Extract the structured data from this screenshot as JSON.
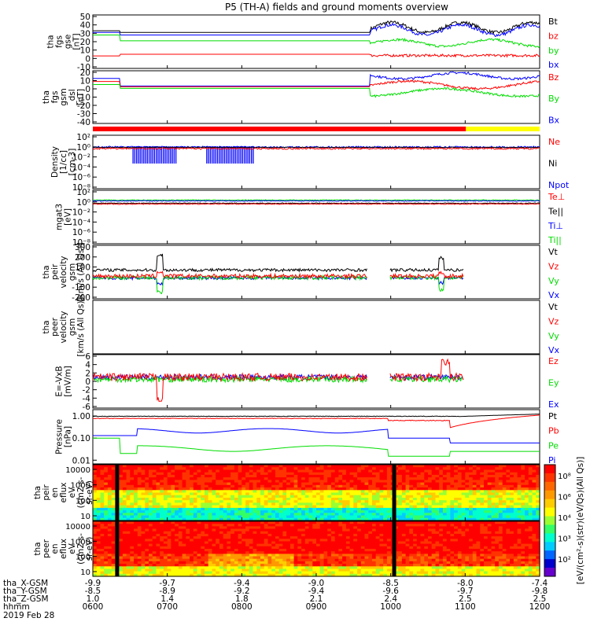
{
  "title": "P5 (TH-A) fields and ground moments overview",
  "colors": {
    "black": "#000000",
    "red": "#ff0000",
    "green": "#00dd00",
    "blue": "#0000ff",
    "mode_red": "#ff0000",
    "mode_yellow": "#ffff00"
  },
  "chart_data": [
    {
      "type": "line",
      "id": "fgs_gse",
      "ylabel": [
        "tha",
        "fgs",
        "gse",
        "[nT]"
      ],
      "ylim": [
        -10,
        50
      ],
      "yticks": [
        "50",
        "40",
        "30",
        "20",
        "10",
        "0",
        "-10"
      ],
      "legend": [
        "Bt",
        "bz",
        "by",
        "bx"
      ],
      "legend_colors": [
        "#000000",
        "#ff0000",
        "#00dd00",
        "#0000ff"
      ]
    },
    {
      "type": "line",
      "id": "fgs_gsm",
      "ylabel": [
        "tha",
        "fgs",
        "gsm",
        "_dsl",
        "[nT]"
      ],
      "ylim": [
        -45,
        20
      ],
      "yticks": [
        "20",
        "10",
        "0",
        "-10",
        "-20",
        "-30",
        "-40"
      ],
      "legend": [
        "Bz",
        "By",
        "Bx"
      ],
      "legend_colors": [
        "#ff0000",
        "#00dd00",
        "#0000ff"
      ]
    },
    {
      "type": "bar",
      "id": "mode_bar",
      "segments": [
        {
          "color": "#ff0000",
          "x": [
            0.0,
            0.835
          ]
        },
        {
          "color": "#ffff00",
          "x": [
            0.835,
            1.0
          ]
        }
      ]
    },
    {
      "type": "line",
      "id": "density",
      "ylabel": [
        "Density",
        "[1/cc]",
        "[cm-3]"
      ],
      "yscale": "log",
      "yticks": [
        "10²",
        "10⁰",
        "10⁻²",
        "10⁻⁴",
        "10⁻⁶",
        "10⁻⁸"
      ],
      "legend": [
        "Ne",
        "Ni",
        "Npot"
      ],
      "legend_colors": [
        "#ff0000",
        "#000000",
        "#0000ff"
      ]
    },
    {
      "type": "line",
      "id": "temperature",
      "ylabel": [
        "mgat3",
        "[eV]"
      ],
      "yscale": "log",
      "yticks": [
        "10²",
        "10⁰",
        "10⁻²",
        "10⁻⁴",
        "10⁻⁶",
        "10⁻⁸"
      ],
      "legend": [
        "Te⊥",
        "Te||",
        "Ti⊥",
        "Ti||"
      ],
      "legend_colors": [
        "#ff0000",
        "#000000",
        "#0000ff",
        "#00dd00"
      ]
    },
    {
      "type": "line",
      "id": "peir_velocity",
      "ylabel": [
        "tha",
        "peir",
        "velocity",
        "gsm",
        "[km/s (All Qs)]"
      ],
      "ylim": [
        -200,
        300
      ],
      "yticks": [
        "300",
        "200",
        "100",
        "0",
        "-100",
        "-200"
      ],
      "legend": [
        "Vt",
        "Vz",
        "Vy",
        "Vx"
      ],
      "legend_colors": [
        "#000000",
        "#ff0000",
        "#00dd00",
        "#0000ff"
      ]
    },
    {
      "type": "line",
      "id": "peer_velocity",
      "ylabel": [
        "tha",
        "peer",
        "velocity",
        "gsm",
        "[km/s (All Qs)]"
      ],
      "legend": [
        "Vt",
        "Vz",
        "Vy",
        "Vx"
      ],
      "legend_colors": [
        "#000000",
        "#ff0000",
        "#00dd00",
        "#0000ff"
      ]
    },
    {
      "type": "line",
      "id": "efield",
      "ylabel": [
        "E=-VxB",
        "[mV/m]"
      ],
      "ylim": [
        -6,
        6
      ],
      "yticks": [
        "6",
        "4",
        "2",
        "0",
        "-2",
        "-4",
        "-6"
      ],
      "legend": [
        "Ez",
        "Ey",
        "Ex"
      ],
      "legend_colors": [
        "#ff0000",
        "#00dd00",
        "#0000ff"
      ]
    },
    {
      "type": "line",
      "id": "pressure",
      "ylabel": [
        "Pressure",
        "[nPa]"
      ],
      "yscale": "log",
      "yticks": [
        "1.00",
        "0.10",
        "0.01"
      ],
      "legend": [
        "Pt",
        "Pb",
        "Pe",
        "Pi"
      ],
      "legend_colors": [
        "#000000",
        "#ff0000",
        "#00dd00",
        "#0000ff"
      ]
    },
    {
      "type": "heatmap",
      "id": "peir_spec",
      "ylabel": [
        "tha",
        "peir",
        "en",
        "eflux",
        "eV",
        "(cm2-s-",
        "sr-eV)"
      ],
      "yscale": "log",
      "yticks": [
        "10000",
        "1000",
        "100",
        "10"
      ]
    },
    {
      "type": "heatmap",
      "id": "peer_spec",
      "ylabel": [
        "tha",
        "peer",
        "en",
        "eflux",
        "eV",
        "(cm2-s-",
        "sr-eV)"
      ],
      "yscale": "log",
      "yticks": [
        "10000",
        "1000",
        "100",
        "10"
      ]
    }
  ],
  "colorbar": {
    "ticks": [
      "10⁸",
      "10⁶",
      "10⁴",
      "10³",
      "10²"
    ],
    "label": "[eV/(cm²-s)(str)(eV/Qs)(All Qs)]"
  },
  "xaxis": {
    "row_labels": [
      "tha_X-GSM",
      "tha_Y-GSM",
      "tha_Z-GSM",
      "hhmm",
      "2019 Feb 28"
    ],
    "columns": [
      {
        "X": "-9.9",
        "Y": "-8.5",
        "Z": "1.0",
        "hhmm": "0600"
      },
      {
        "X": "-9.7",
        "Y": "-8.9",
        "Z": "1.4",
        "hhmm": "0700"
      },
      {
        "X": "-9.4",
        "Y": "-9.2",
        "Z": "1.8",
        "hhmm": "0800"
      },
      {
        "X": "-9.0",
        "Y": "-9.4",
        "Z": "2.1",
        "hhmm": "0900"
      },
      {
        "X": "-8.5",
        "Y": "-9.6",
        "Z": "2.4",
        "hhmm": "1000"
      },
      {
        "X": "-8.0",
        "Y": "-9.7",
        "Z": "2.5",
        "hhmm": "1100"
      },
      {
        "X": "-7.4",
        "Y": "-9.8",
        "Z": "2.5",
        "hhmm": "1200"
      }
    ]
  }
}
